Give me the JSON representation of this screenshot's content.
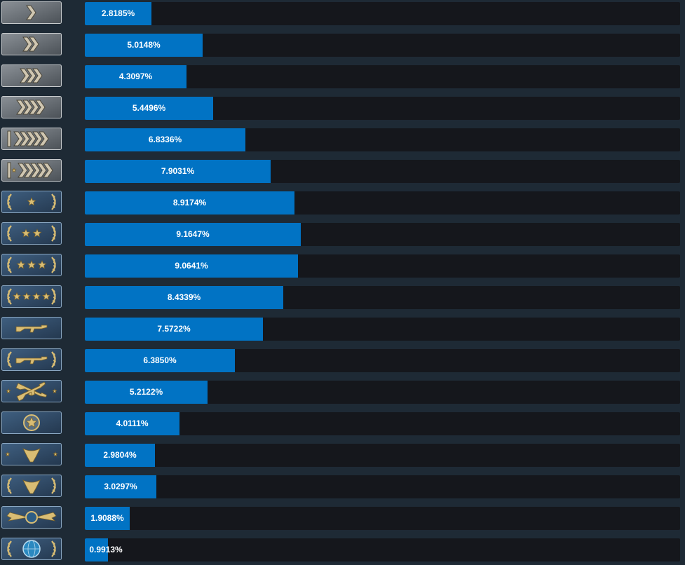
{
  "chart_data": {
    "type": "bar",
    "orientation": "horizontal",
    "title": "",
    "xlabel": "",
    "ylabel": "",
    "xlim": [
      0,
      25.3
    ],
    "grid": false,
    "legend": "none",
    "bar_color": "#0173c4",
    "track_color": "#15171c",
    "background_color": "#1e2a35",
    "value_suffix": "%",
    "categories": [
      "chevron-1-icon",
      "chevron-2-icon",
      "chevron-3-icon",
      "chevron-4-icon",
      "chevron-elite-icon",
      "chevron-master-icon",
      "star-1-icon",
      "star-2-icon",
      "star-3-icon",
      "star-4-icon",
      "rifle-icon",
      "rifle-wreath-icon",
      "crossed-rifles-icon",
      "star-emblem-icon",
      "eagle-icon",
      "eagle-wreath-icon",
      "winged-emblem-icon",
      "globe-icon"
    ],
    "values": [
      2.8185,
      5.0148,
      4.3097,
      5.4496,
      6.8336,
      7.9031,
      8.9174,
      9.1647,
      9.0641,
      8.4339,
      7.5722,
      6.385,
      5.2122,
      4.0111,
      2.9804,
      3.0297,
      1.9088,
      0.9913
    ],
    "labels": [
      "2.8185%",
      "5.0148%",
      "4.3097%",
      "5.4496%",
      "6.8336%",
      "7.9031%",
      "8.9174%",
      "9.1647%",
      "9.0641%",
      "8.4339%",
      "7.5722%",
      "6.3850%",
      "5.2122%",
      "4.0111%",
      "2.9804%",
      "3.0297%",
      "1.9088%",
      "0.9913%"
    ]
  }
}
